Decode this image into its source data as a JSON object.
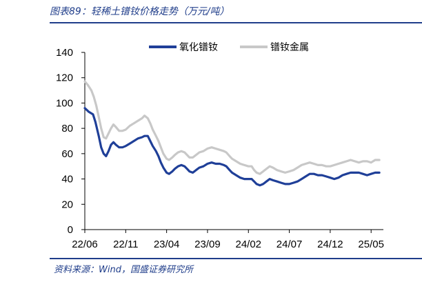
{
  "header": {
    "title": "图表89：轻稀土镨钕价格走势（万元/吨）"
  },
  "footer": {
    "source": "资料来源：Wind，国盛证券研究所"
  },
  "chart_data": {
    "type": "line",
    "title": "图表89：轻稀土镨钕价格走势（万元/吨）",
    "xlabel": "",
    "ylabel": "",
    "ylim": [
      0,
      140
    ],
    "yticks": [
      0,
      20,
      40,
      60,
      80,
      100,
      120,
      140
    ],
    "x_start": "2022-06",
    "x_end": "2025-06",
    "x_tick_labels": [
      "22/06",
      "22/11",
      "23/04",
      "23/09",
      "24/02",
      "24/07",
      "24/12",
      "25/05"
    ],
    "x_tick_months": [
      0,
      5,
      10,
      15,
      20,
      25,
      30,
      35
    ],
    "legend_position": "top-right",
    "grid": false,
    "series": [
      {
        "name": "氧化镨钕",
        "color": "#1f3f98",
        "points": [
          [
            0,
            96
          ],
          [
            0.5,
            93
          ],
          [
            1,
            91
          ],
          [
            1.3,
            85
          ],
          [
            1.7,
            74
          ],
          [
            2,
            65
          ],
          [
            2.3,
            60
          ],
          [
            2.6,
            58
          ],
          [
            2.9,
            62
          ],
          [
            3.2,
            67
          ],
          [
            3.5,
            69
          ],
          [
            3.8,
            67
          ],
          [
            4.2,
            65
          ],
          [
            4.6,
            65
          ],
          [
            5,
            66
          ],
          [
            5.5,
            68
          ],
          [
            6,
            70
          ],
          [
            6.5,
            72
          ],
          [
            7,
            73
          ],
          [
            7.3,
            74
          ],
          [
            7.7,
            74
          ],
          [
            8,
            70
          ],
          [
            8.3,
            66
          ],
          [
            8.7,
            62
          ],
          [
            9,
            58
          ],
          [
            9.3,
            53
          ],
          [
            9.6,
            49
          ],
          [
            10,
            45
          ],
          [
            10.3,
            44
          ],
          [
            10.7,
            46
          ],
          [
            11,
            48
          ],
          [
            11.4,
            50
          ],
          [
            11.8,
            51
          ],
          [
            12.2,
            50
          ],
          [
            12.5,
            48
          ],
          [
            12.8,
            46
          ],
          [
            13.2,
            45
          ],
          [
            13.6,
            47
          ],
          [
            14,
            49
          ],
          [
            14.5,
            50
          ],
          [
            15,
            52
          ],
          [
            15.5,
            53
          ],
          [
            16,
            52
          ],
          [
            16.5,
            52
          ],
          [
            17,
            51
          ],
          [
            17.3,
            50
          ],
          [
            17.7,
            47
          ],
          [
            18,
            45
          ],
          [
            18.5,
            43
          ],
          [
            19,
            41
          ],
          [
            19.5,
            40
          ],
          [
            20,
            40
          ],
          [
            20.4,
            40
          ],
          [
            20.7,
            38
          ],
          [
            21,
            36
          ],
          [
            21.4,
            35
          ],
          [
            21.8,
            36
          ],
          [
            22.2,
            38
          ],
          [
            22.6,
            40
          ],
          [
            23,
            39
          ],
          [
            23.5,
            38
          ],
          [
            24,
            37
          ],
          [
            24.5,
            36
          ],
          [
            25,
            36
          ],
          [
            25.5,
            37
          ],
          [
            26,
            38
          ],
          [
            26.5,
            40
          ],
          [
            27,
            42
          ],
          [
            27.5,
            44
          ],
          [
            28,
            44
          ],
          [
            28.5,
            43
          ],
          [
            29,
            43
          ],
          [
            29.5,
            42
          ],
          [
            30,
            41
          ],
          [
            30.5,
            40
          ],
          [
            31,
            41
          ],
          [
            31.5,
            43
          ],
          [
            32,
            44
          ],
          [
            32.5,
            45
          ],
          [
            33,
            45
          ],
          [
            33.5,
            45
          ],
          [
            34,
            44
          ],
          [
            34.5,
            43
          ],
          [
            35,
            44
          ],
          [
            35.5,
            45
          ],
          [
            36,
            45
          ]
        ]
      },
      {
        "name": "镨钕金属",
        "color": "#c8c8c8",
        "points": [
          [
            0,
            117
          ],
          [
            0.4,
            114
          ],
          [
            0.8,
            110
          ],
          [
            1.1,
            105
          ],
          [
            1.4,
            98
          ],
          [
            1.7,
            89
          ],
          [
            2,
            80
          ],
          [
            2.3,
            73
          ],
          [
            2.6,
            72
          ],
          [
            2.9,
            76
          ],
          [
            3.2,
            80
          ],
          [
            3.5,
            83
          ],
          [
            3.8,
            81
          ],
          [
            4.2,
            78
          ],
          [
            4.6,
            78
          ],
          [
            5,
            79
          ],
          [
            5.5,
            82
          ],
          [
            6,
            84
          ],
          [
            6.5,
            86
          ],
          [
            7,
            88
          ],
          [
            7.3,
            90
          ],
          [
            7.7,
            88
          ],
          [
            8,
            84
          ],
          [
            8.3,
            79
          ],
          [
            8.7,
            74
          ],
          [
            9,
            70
          ],
          [
            9.3,
            65
          ],
          [
            9.6,
            60
          ],
          [
            10,
            56
          ],
          [
            10.3,
            55
          ],
          [
            10.7,
            57
          ],
          [
            11,
            59
          ],
          [
            11.4,
            61
          ],
          [
            11.8,
            62
          ],
          [
            12.2,
            61
          ],
          [
            12.5,
            59
          ],
          [
            12.8,
            57
          ],
          [
            13.2,
            57
          ],
          [
            13.6,
            59
          ],
          [
            14,
            61
          ],
          [
            14.5,
            62
          ],
          [
            15,
            64
          ],
          [
            15.5,
            65
          ],
          [
            16,
            64
          ],
          [
            16.5,
            63
          ],
          [
            17,
            62
          ],
          [
            17.3,
            61
          ],
          [
            17.7,
            58
          ],
          [
            18,
            56
          ],
          [
            18.5,
            54
          ],
          [
            19,
            52
          ],
          [
            19.5,
            51
          ],
          [
            20,
            50
          ],
          [
            20.4,
            50
          ],
          [
            20.7,
            47
          ],
          [
            21,
            45
          ],
          [
            21.4,
            44
          ],
          [
            21.8,
            46
          ],
          [
            22.2,
            48
          ],
          [
            22.6,
            50
          ],
          [
            23,
            49
          ],
          [
            23.5,
            47
          ],
          [
            24,
            46
          ],
          [
            24.5,
            45
          ],
          [
            25,
            46
          ],
          [
            25.5,
            47
          ],
          [
            26,
            49
          ],
          [
            26.5,
            51
          ],
          [
            27,
            52
          ],
          [
            27.5,
            53
          ],
          [
            28,
            52
          ],
          [
            28.5,
            51
          ],
          [
            29,
            51
          ],
          [
            29.5,
            50
          ],
          [
            30,
            50
          ],
          [
            30.5,
            51
          ],
          [
            31,
            52
          ],
          [
            31.5,
            53
          ],
          [
            32,
            54
          ],
          [
            32.5,
            55
          ],
          [
            33,
            54
          ],
          [
            33.5,
            53
          ],
          [
            34,
            54
          ],
          [
            34.5,
            54
          ],
          [
            35,
            53
          ],
          [
            35.5,
            55
          ],
          [
            36,
            55
          ]
        ]
      }
    ]
  }
}
